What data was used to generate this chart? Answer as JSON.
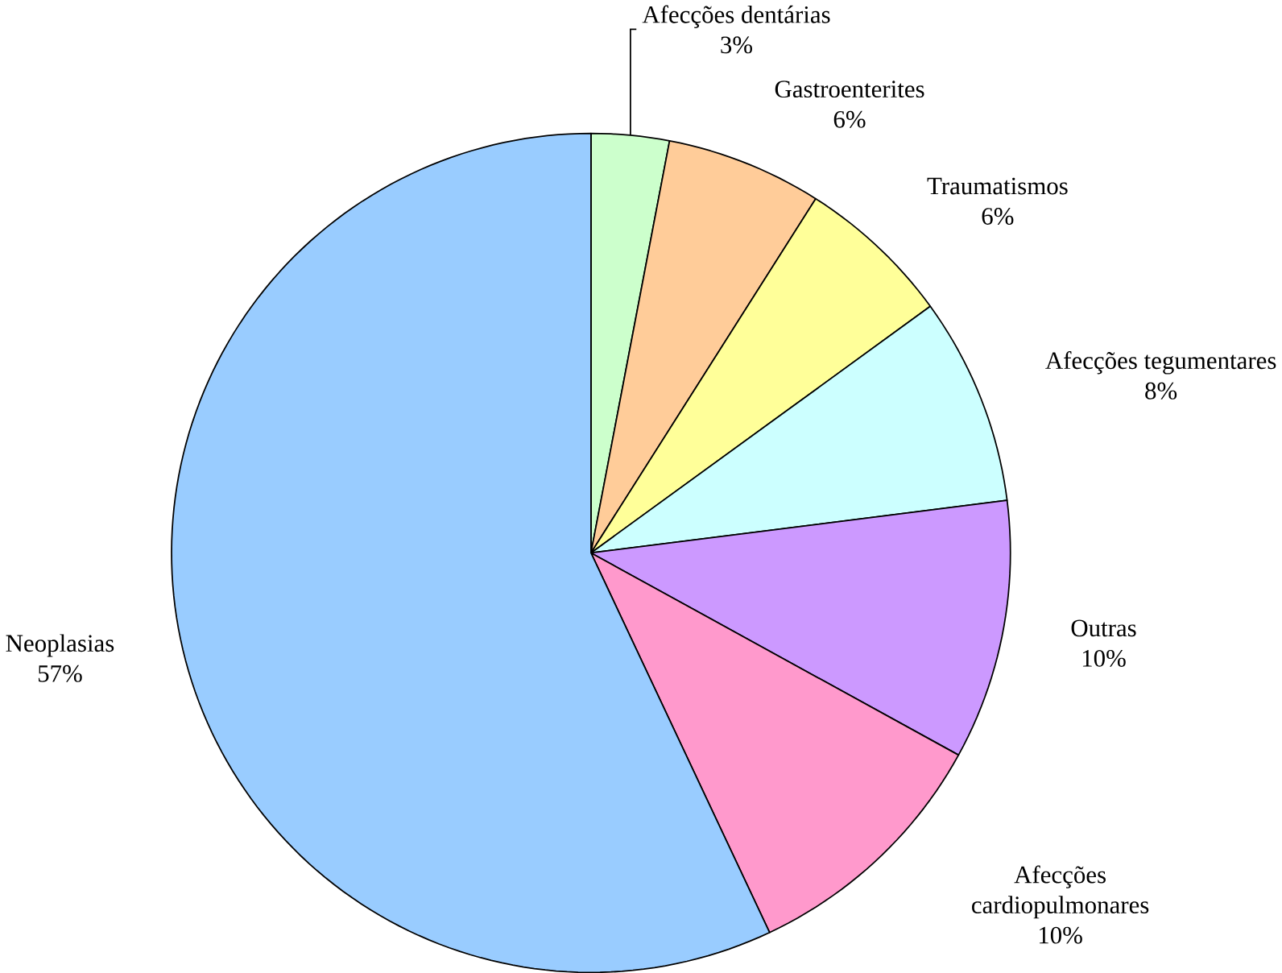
{
  "chart_data": {
    "type": "pie",
    "categories": [
      "Afecções dentárias",
      "Gastroenterites",
      "Traumatismos",
      "Afecções tegumentares",
      "Outras",
      "Afecções cardiopulmonares",
      "Neoplasias"
    ],
    "values": [
      3,
      6,
      6,
      8,
      10,
      10,
      57
    ],
    "value_labels": [
      "3%",
      "6%",
      "6%",
      "8%",
      "10%",
      "10%",
      "57%"
    ],
    "colors": [
      "#ccffcc",
      "#ffcc99",
      "#ffff99",
      "#ccffff",
      "#cc99ff",
      "#ff99cc",
      "#99ccff"
    ]
  }
}
